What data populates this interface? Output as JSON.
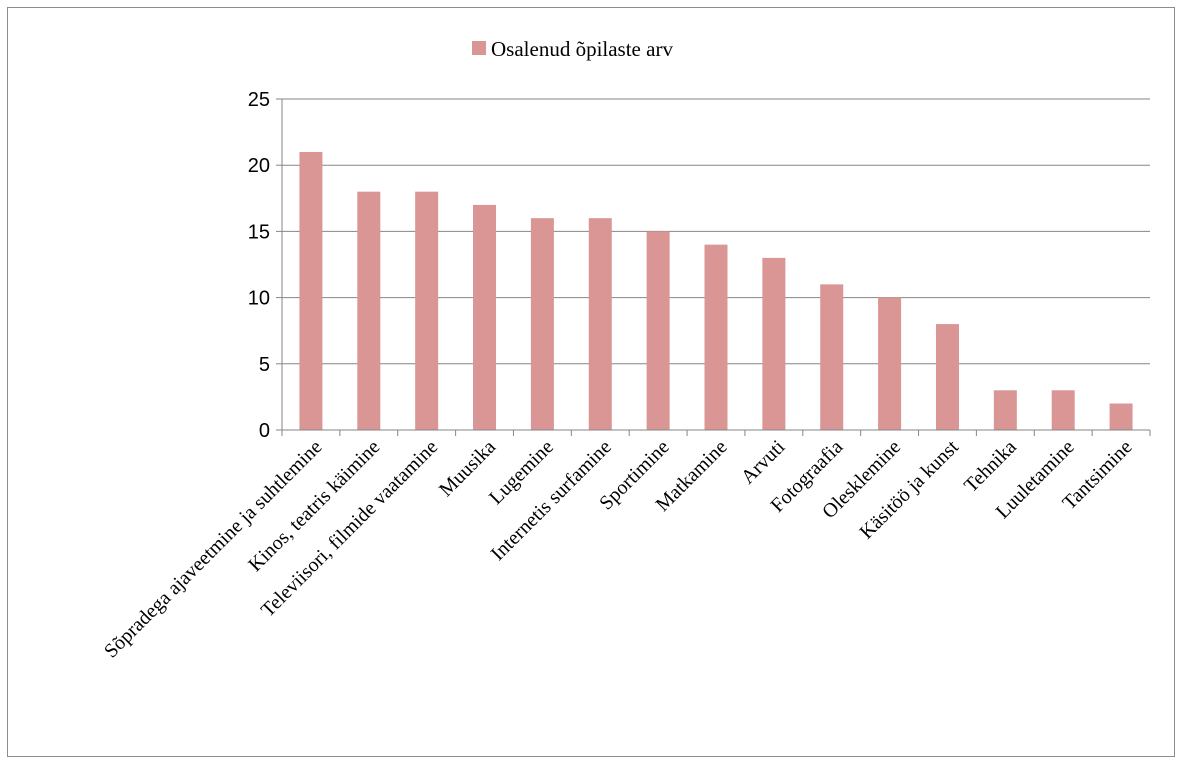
{
  "chart_data": {
    "type": "bar",
    "categories": [
      "Sõpradega ajaveetmine ja suhtlemine",
      "Kinos, teatris käimine",
      "Televiisori, filmide vaatamine",
      "Muusika",
      "Lugemine",
      "Internetis surfamine",
      "Sportimine",
      "Matkamine",
      "Arvuti",
      "Fotograafia",
      "Olesklemine",
      "Käsitöö ja kunst",
      "Tehnika",
      "Luuletamine",
      "Tantsimine"
    ],
    "series": [
      {
        "name": "Osalenud õpilaste arv",
        "values": [
          21,
          18,
          18,
          17,
          16,
          16,
          15,
          14,
          13,
          11,
          10,
          8,
          3,
          3,
          2
        ]
      }
    ],
    "ylim": [
      0,
      25
    ],
    "yticks": [
      0,
      5,
      10,
      15,
      20,
      25
    ],
    "grid": true,
    "legend": "top",
    "colors": {
      "bar": "#d99694",
      "grid": "#868686",
      "axis": "#868686"
    }
  }
}
